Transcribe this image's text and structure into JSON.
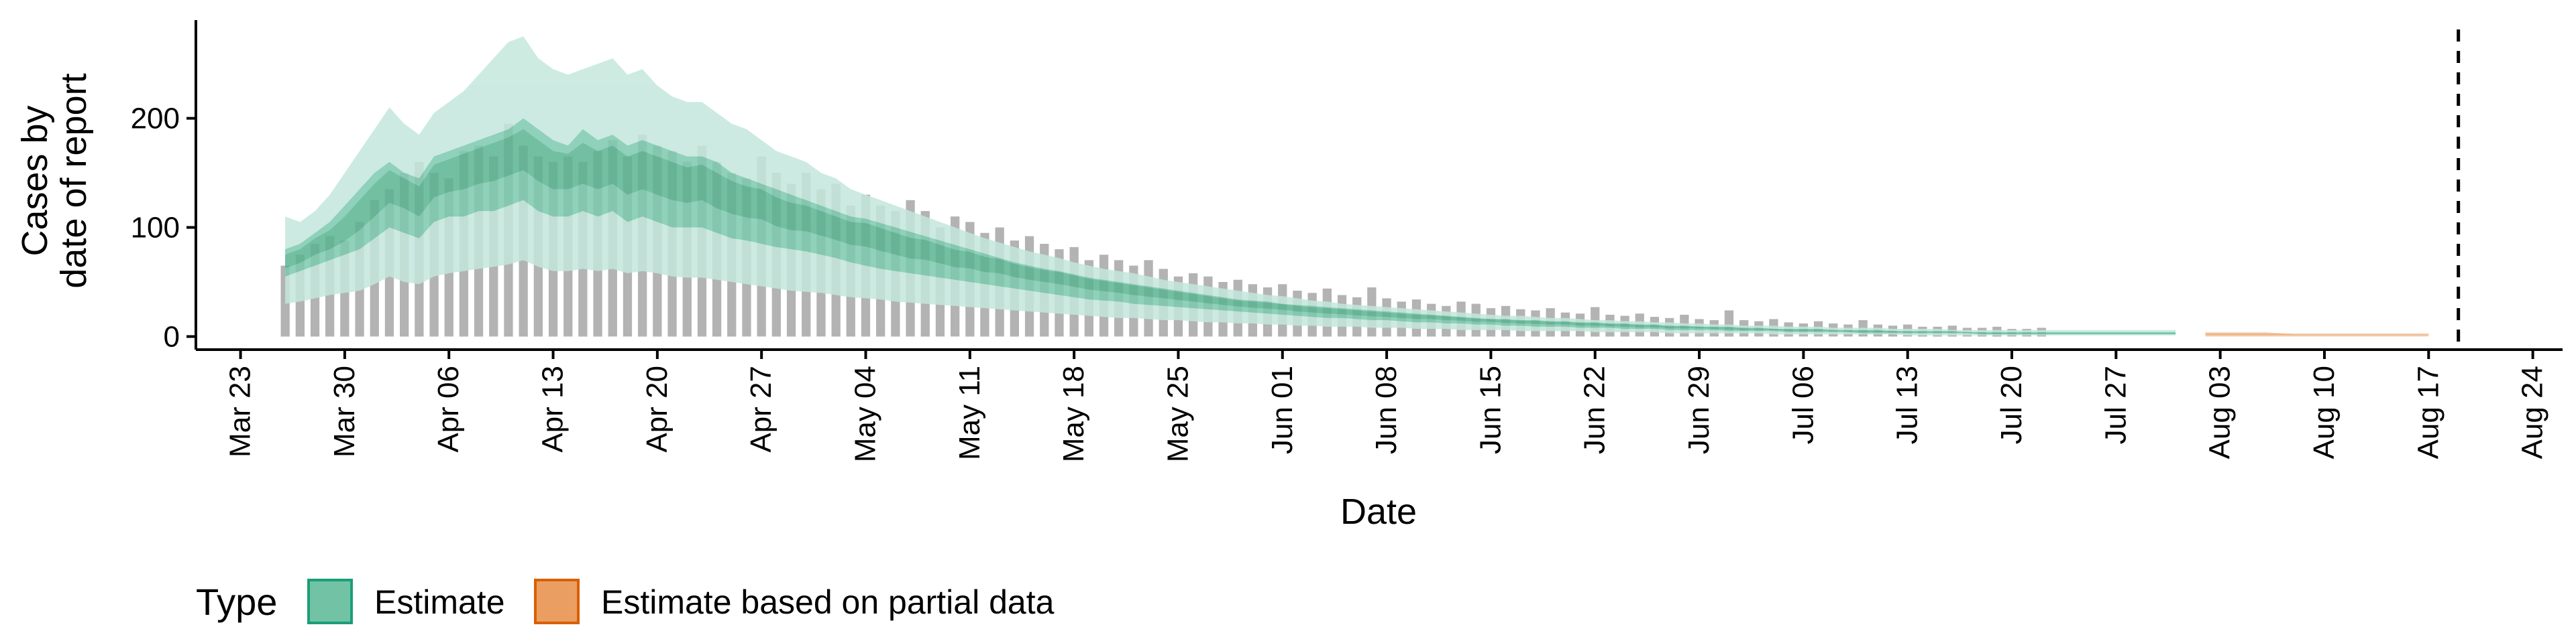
{
  "colors": {
    "estimate_ci90": "#c4e7dc",
    "estimate_ci50": "#7ccaae",
    "estimate_ci20": "#5bb492",
    "partial_ci90": "#f6d3b6",
    "partial_ci50": "#eeae7c",
    "observed_bar": "#b3b3b3",
    "axis": "#000000",
    "legend_estimate_fill": "#72c3a6",
    "legend_estimate_border": "#1b9e77",
    "legend_partial_fill": "#eb9e62",
    "legend_partial_border": "#d95f02"
  },
  "chart_data": {
    "type": "area",
    "xlabel": "Date",
    "ylabel_lines": [
      "Cases by",
      "date of report"
    ],
    "x_range": [
      "2020-03-20",
      "2020-08-26"
    ],
    "ylim": [
      -12,
      290
    ],
    "y_ticks": [
      0,
      100,
      200
    ],
    "x_ticks": [
      "Mar 23",
      "Mar 30",
      "Apr 06",
      "Apr 13",
      "Apr 20",
      "Apr 27",
      "May 04",
      "May 11",
      "May 18",
      "May 25",
      "Jun 01",
      "Jun 08",
      "Jun 15",
      "Jun 22",
      "Jun 29",
      "Jul 06",
      "Jul 13",
      "Jul 20",
      "Jul 27",
      "Aug 03",
      "Aug 10",
      "Aug 17",
      "Aug 24"
    ],
    "x_tick_dates": [
      "2020-03-23",
      "2020-03-30",
      "2020-04-06",
      "2020-04-13",
      "2020-04-20",
      "2020-04-27",
      "2020-05-04",
      "2020-05-11",
      "2020-05-18",
      "2020-05-25",
      "2020-06-01",
      "2020-06-08",
      "2020-06-15",
      "2020-06-22",
      "2020-06-29",
      "2020-07-06",
      "2020-07-13",
      "2020-07-20",
      "2020-07-27",
      "2020-08-03",
      "2020-08-10",
      "2020-08-17",
      "2020-08-24"
    ],
    "vline_date": "2020-08-19",
    "grid": false,
    "legend_position": "bottom-left",
    "legend": {
      "title": "Type",
      "items": [
        "Estimate",
        "Estimate based on partial data"
      ]
    },
    "observed_daily": {
      "start": "2020-03-26",
      "values": [
        65,
        75,
        85,
        92,
        88,
        105,
        125,
        135,
        150,
        160,
        150,
        145,
        170,
        175,
        165,
        195,
        175,
        165,
        160,
        165,
        160,
        170,
        180,
        165,
        185,
        175,
        170,
        160,
        175,
        160,
        150,
        145,
        165,
        150,
        140,
        150,
        135,
        140,
        120,
        130,
        120,
        115,
        125,
        115,
        100,
        110,
        105,
        95,
        100,
        88,
        92,
        85,
        80,
        82,
        70,
        75,
        70,
        65,
        70,
        62,
        55,
        58,
        55,
        50,
        52,
        48,
        45,
        48,
        42,
        40,
        44,
        38,
        36,
        45,
        35,
        32,
        34,
        30,
        28,
        32,
        30,
        26,
        28,
        25,
        24,
        26,
        22,
        21,
        27,
        20,
        19,
        21,
        18,
        17,
        20,
        16,
        15,
        24,
        15,
        14,
        16,
        13,
        12,
        14,
        12,
        11,
        15,
        11,
        10,
        11,
        9,
        9,
        10,
        8,
        8,
        9,
        7,
        7,
        8
      ]
    },
    "estimate": {
      "start": "2020-03-26",
      "median": [
        70,
        75,
        85,
        90,
        100,
        115,
        130,
        145,
        140,
        130,
        150,
        155,
        160,
        165,
        170,
        175,
        180,
        170,
        160,
        160,
        165,
        160,
        165,
        155,
        160,
        155,
        150,
        145,
        150,
        140,
        135,
        130,
        130,
        120,
        115,
        115,
        110,
        105,
        100,
        100,
        95,
        90,
        85,
        85,
        80,
        75,
        75,
        70,
        70,
        65,
        62,
        60,
        58,
        55,
        52,
        50,
        48,
        46,
        44,
        42,
        40,
        38,
        36,
        34,
        32,
        31,
        30,
        29,
        27,
        26,
        25,
        24,
        23,
        22,
        21,
        20,
        19,
        19,
        18,
        17,
        16,
        16,
        15,
        14,
        14,
        13,
        13,
        12,
        12,
        11,
        11,
        10,
        10,
        9,
        9,
        9,
        8,
        8,
        7,
        7,
        7,
        6,
        6,
        6,
        6,
        5,
        5,
        5,
        5,
        4,
        4,
        4,
        4,
        4,
        3,
        3,
        3,
        3,
        3,
        3,
        3,
        3,
        3,
        3,
        3,
        3,
        3,
        3
      ],
      "ci50_upper": [
        80,
        85,
        95,
        105,
        120,
        135,
        150,
        160,
        150,
        145,
        165,
        170,
        175,
        180,
        185,
        190,
        200,
        190,
        180,
        175,
        190,
        180,
        185,
        175,
        180,
        175,
        170,
        165,
        165,
        160,
        150,
        145,
        140,
        135,
        130,
        125,
        120,
        115,
        110,
        108,
        104,
        100,
        96,
        92,
        88,
        84,
        80,
        76,
        72,
        68,
        65,
        62,
        60,
        57,
        54,
        52,
        50,
        48,
        46,
        44,
        42,
        40,
        38,
        36,
        34,
        33,
        32,
        30,
        29,
        28,
        27,
        26,
        25,
        24,
        23,
        22,
        21,
        20,
        19,
        18,
        17,
        16,
        16,
        15,
        15,
        14,
        14,
        13,
        13,
        12,
        12,
        11,
        11,
        10,
        10,
        9,
        9,
        9,
        8,
        8,
        7,
        7,
        7,
        7,
        6,
        6,
        6,
        6,
        5,
        5,
        5,
        5,
        5,
        4,
        4,
        4,
        4,
        4,
        4,
        4,
        4,
        4,
        4,
        4,
        4,
        4,
        4,
        4
      ],
      "ci50_lower": [
        55,
        60,
        65,
        70,
        75,
        80,
        90,
        100,
        95,
        90,
        105,
        110,
        110,
        115,
        115,
        120,
        125,
        115,
        110,
        110,
        115,
        110,
        115,
        105,
        110,
        105,
        100,
        100,
        100,
        95,
        90,
        88,
        85,
        82,
        80,
        78,
        75,
        72,
        68,
        65,
        62,
        60,
        58,
        56,
        54,
        52,
        50,
        48,
        46,
        44,
        42,
        40,
        38,
        36,
        34,
        33,
        32,
        30,
        29,
        28,
        27,
        26,
        25,
        24,
        23,
        22,
        21,
        20,
        19,
        18,
        17,
        17,
        16,
        15,
        15,
        14,
        13,
        13,
        12,
        12,
        11,
        11,
        10,
        10,
        9,
        9,
        9,
        8,
        8,
        8,
        7,
        7,
        7,
        6,
        6,
        6,
        6,
        5,
        5,
        5,
        5,
        4,
        4,
        4,
        4,
        4,
        3,
        3,
        3,
        3,
        3,
        3,
        3,
        3,
        2,
        2,
        2,
        2,
        2,
        2,
        2,
        2,
        2,
        2,
        2,
        2,
        2,
        2
      ],
      "ci90_upper": [
        110,
        105,
        115,
        130,
        150,
        170,
        190,
        210,
        195,
        185,
        205,
        215,
        225,
        240,
        255,
        270,
        275,
        255,
        245,
        240,
        245,
        250,
        255,
        240,
        245,
        230,
        220,
        215,
        215,
        205,
        195,
        190,
        180,
        170,
        165,
        160,
        150,
        145,
        135,
        130,
        125,
        120,
        115,
        110,
        105,
        100,
        95,
        90,
        86,
        82,
        78,
        75,
        72,
        68,
        65,
        62,
        60,
        58,
        55,
        52,
        50,
        48,
        46,
        44,
        42,
        40,
        38,
        37,
        35,
        33,
        32,
        30,
        29,
        28,
        27,
        26,
        25,
        24,
        23,
        22,
        21,
        20,
        19,
        19,
        18,
        17,
        17,
        16,
        15,
        15,
        14,
        14,
        13,
        13,
        12,
        12,
        11,
        11,
        10,
        10,
        10,
        9,
        9,
        9,
        8,
        8,
        8,
        8,
        7,
        7,
        7,
        7,
        6,
        6,
        6,
        6,
        6,
        6,
        6,
        6,
        6,
        6,
        6,
        6,
        6,
        6,
        6,
        6
      ],
      "ci90_lower": [
        30,
        32,
        35,
        38,
        40,
        42,
        48,
        55,
        50,
        48,
        55,
        58,
        60,
        62,
        64,
        66,
        70,
        64,
        60,
        60,
        62,
        60,
        62,
        58,
        60,
        58,
        55,
        54,
        54,
        52,
        50,
        48,
        46,
        44,
        42,
        41,
        40,
        38,
        36,
        35,
        34,
        32,
        31,
        30,
        29,
        28,
        27,
        26,
        25,
        24,
        23,
        22,
        21,
        20,
        19,
        18,
        17,
        17,
        16,
        15,
        15,
        14,
        13,
        13,
        12,
        12,
        11,
        11,
        10,
        10,
        9,
        9,
        9,
        8,
        8,
        8,
        7,
        7,
        7,
        6,
        6,
        6,
        6,
        5,
        5,
        5,
        5,
        5,
        4,
        4,
        4,
        4,
        4,
        3,
        3,
        3,
        3,
        3,
        3,
        3,
        2,
        2,
        2,
        2,
        2,
        2,
        2,
        2,
        2,
        1,
        1,
        1,
        1,
        1,
        1,
        1,
        1,
        1,
        1,
        1,
        1,
        1,
        1,
        1,
        1,
        1,
        1,
        1
      ]
    },
    "estimate_partial": {
      "start": "2020-08-02",
      "median": [
        2,
        2,
        2,
        2,
        2,
        2,
        2,
        2,
        2,
        1,
        1,
        1,
        1,
        1,
        1,
        1
      ],
      "ci50_upper": [
        3,
        3,
        3,
        3,
        3,
        3,
        2,
        2,
        2,
        2,
        2,
        2,
        2,
        2,
        2,
        2
      ],
      "ci50_lower": [
        1,
        1,
        1,
        1,
        1,
        1,
        1,
        1,
        1,
        1,
        1,
        1,
        1,
        1,
        1,
        1
      ],
      "ci90_upper": [
        4,
        4,
        4,
        4,
        4,
        3,
        3,
        3,
        3,
        3,
        3,
        3,
        3,
        3,
        3,
        3
      ],
      "ci90_lower": [
        0,
        0,
        0,
        0,
        0,
        0,
        0,
        0,
        0,
        0,
        0,
        0,
        0,
        0,
        0,
        0
      ]
    }
  }
}
